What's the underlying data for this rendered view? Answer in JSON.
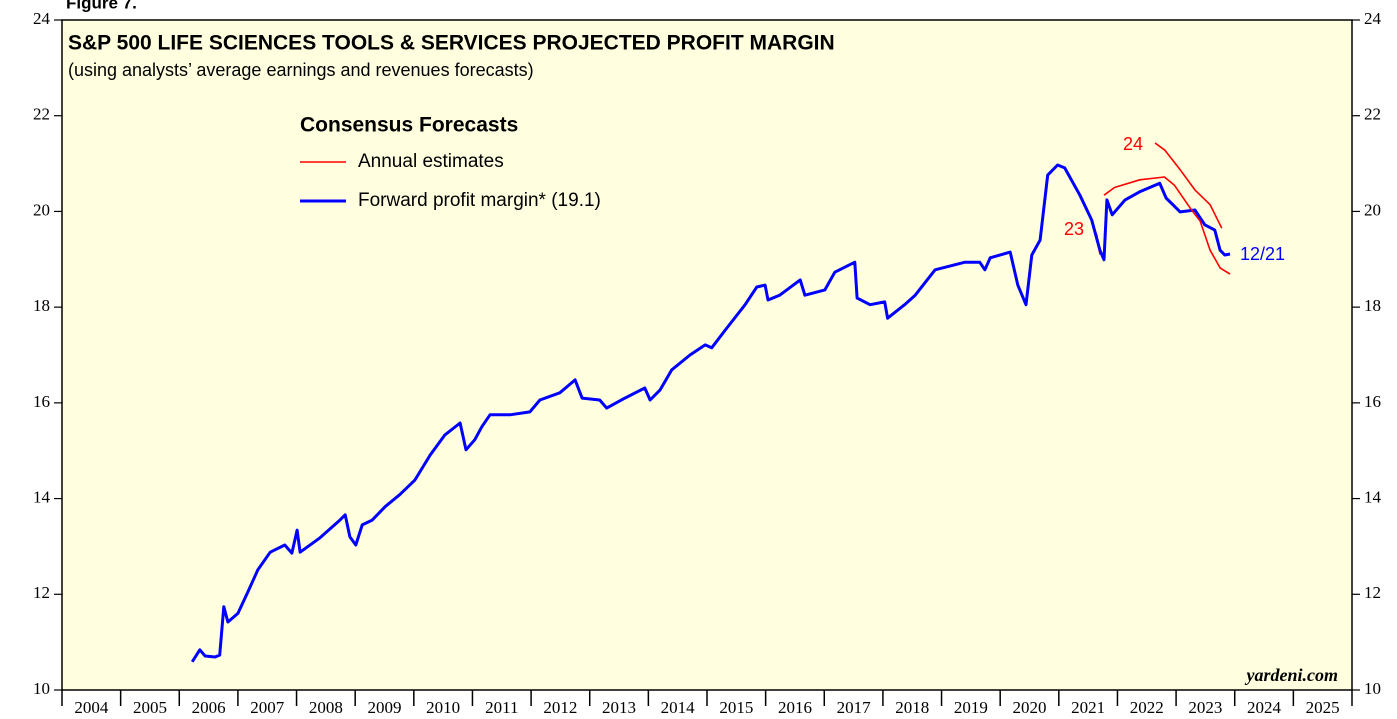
{
  "chart_data": {
    "type": "line",
    "figure_label": "Figure 7.",
    "title": "S&P 500 LIFE SCIENCES TOOLS & SERVICES PROJECTED PROFIT MARGIN",
    "subtitle": "(using analysts’ average earnings and revenues forecasts)",
    "legend_title": "Consensus Forecasts",
    "source": "yardeni.com",
    "annotations": {
      "estimate_2023": "23",
      "estimate_2024": "24",
      "last_date": "12/21"
    },
    "xlim": [
      2004,
      2026
    ],
    "xticks": [
      2004,
      2005,
      2006,
      2007,
      2008,
      2009,
      2010,
      2011,
      2012,
      2013,
      2014,
      2015,
      2016,
      2017,
      2018,
      2019,
      2020,
      2021,
      2022,
      2023,
      2024,
      2025
    ],
    "ylim": [
      10,
      24
    ],
    "yticks": [
      10,
      12,
      14,
      16,
      18,
      20,
      22,
      24
    ],
    "background": "#ffffe0",
    "series": [
      {
        "name": "Annual estimates",
        "color": "#ff0000",
        "legend": true,
        "x": [
          2021.58,
          2021.65,
          2021.7
        ],
        "values": [
          19.72,
          19.5,
          19.1
        ]
      },
      {
        "name": "Forward profit margin* (19.1)",
        "color": "#0000ff",
        "legend": true,
        "x": [
          2006.22,
          2006.35,
          2006.44,
          2006.61,
          2006.69,
          2006.76,
          2006.83,
          2007.0,
          2007.17,
          2007.34,
          2007.55,
          2007.8,
          2007.92,
          2008.01,
          2008.06,
          2008.4,
          2008.74,
          2008.83,
          2008.91,
          2009.01,
          2009.12,
          2009.29,
          2009.51,
          2009.76,
          2010.02,
          2010.28,
          2010.53,
          2010.79,
          2010.89,
          2011.04,
          2011.16,
          2011.3,
          2011.64,
          2011.98,
          2012.15,
          2012.49,
          2012.75,
          2012.87,
          2013.17,
          2013.29,
          2013.6,
          2013.94,
          2014.03,
          2014.2,
          2014.4,
          2014.71,
          2014.97,
          2015.08,
          2015.31,
          2015.65,
          2015.85,
          2015.99,
          2016.04,
          2016.24,
          2016.59,
          2016.67,
          2017.01,
          2017.18,
          2017.52,
          2017.56,
          2017.78,
          2018.03,
          2018.08,
          2018.37,
          2018.55,
          2018.89,
          2019.4,
          2019.65,
          2019.74,
          2019.83,
          2020.17,
          2020.3,
          2020.44,
          2020.54,
          2020.68,
          2020.81,
          2020.98,
          2021.1,
          2021.36,
          2021.56,
          2021.7,
          2021.77,
          2021.82,
          2021.91,
          2022.13,
          2022.38,
          2022.72,
          2022.83,
          2023.07,
          2023.32,
          2023.49,
          2023.66,
          2023.75,
          2023.83,
          2023.92
        ],
        "values": [
          10.59,
          10.84,
          10.71,
          10.69,
          10.73,
          11.74,
          11.42,
          11.6,
          12.05,
          12.51,
          12.88,
          13.03,
          12.86,
          13.34,
          12.88,
          13.18,
          13.55,
          13.66,
          13.2,
          13.03,
          13.45,
          13.55,
          13.83,
          14.08,
          14.39,
          14.91,
          15.33,
          15.58,
          15.02,
          15.23,
          15.5,
          15.75,
          15.75,
          15.81,
          16.06,
          16.21,
          16.48,
          16.1,
          16.06,
          15.89,
          16.1,
          16.31,
          16.06,
          16.27,
          16.69,
          17.0,
          17.21,
          17.15,
          17.52,
          18.05,
          18.42,
          18.46,
          18.15,
          18.25,
          18.57,
          18.25,
          18.36,
          18.73,
          18.94,
          18.19,
          18.05,
          18.11,
          17.77,
          18.05,
          18.25,
          18.78,
          18.94,
          18.94,
          18.78,
          19.03,
          19.15,
          18.46,
          18.05,
          19.09,
          19.4,
          20.76,
          20.97,
          20.91,
          20.34,
          19.82,
          19.19,
          18.99,
          20.24,
          19.93,
          20.24,
          20.41,
          20.59,
          20.28,
          19.99,
          20.03,
          19.72,
          19.61,
          19.19,
          19.09,
          19.11
        ]
      },
      {
        "name": "2023",
        "color": "#ff0000",
        "legend": false,
        "x": [
          2021.77,
          2021.95,
          2022.38,
          2022.8,
          2022.97,
          2023.24,
          2023.41,
          2023.58,
          2023.75,
          2023.92
        ],
        "values": [
          20.34,
          20.5,
          20.66,
          20.72,
          20.55,
          20.07,
          19.8,
          19.19,
          18.82,
          18.69
        ]
      },
      {
        "name": "2024",
        "color": "#ff0000",
        "legend": false,
        "x": [
          2022.64,
          2022.81,
          2023.07,
          2023.32,
          2023.58,
          2023.71,
          2023.78
        ],
        "values": [
          21.43,
          21.28,
          20.87,
          20.45,
          20.14,
          19.82,
          19.65
        ]
      }
    ]
  }
}
